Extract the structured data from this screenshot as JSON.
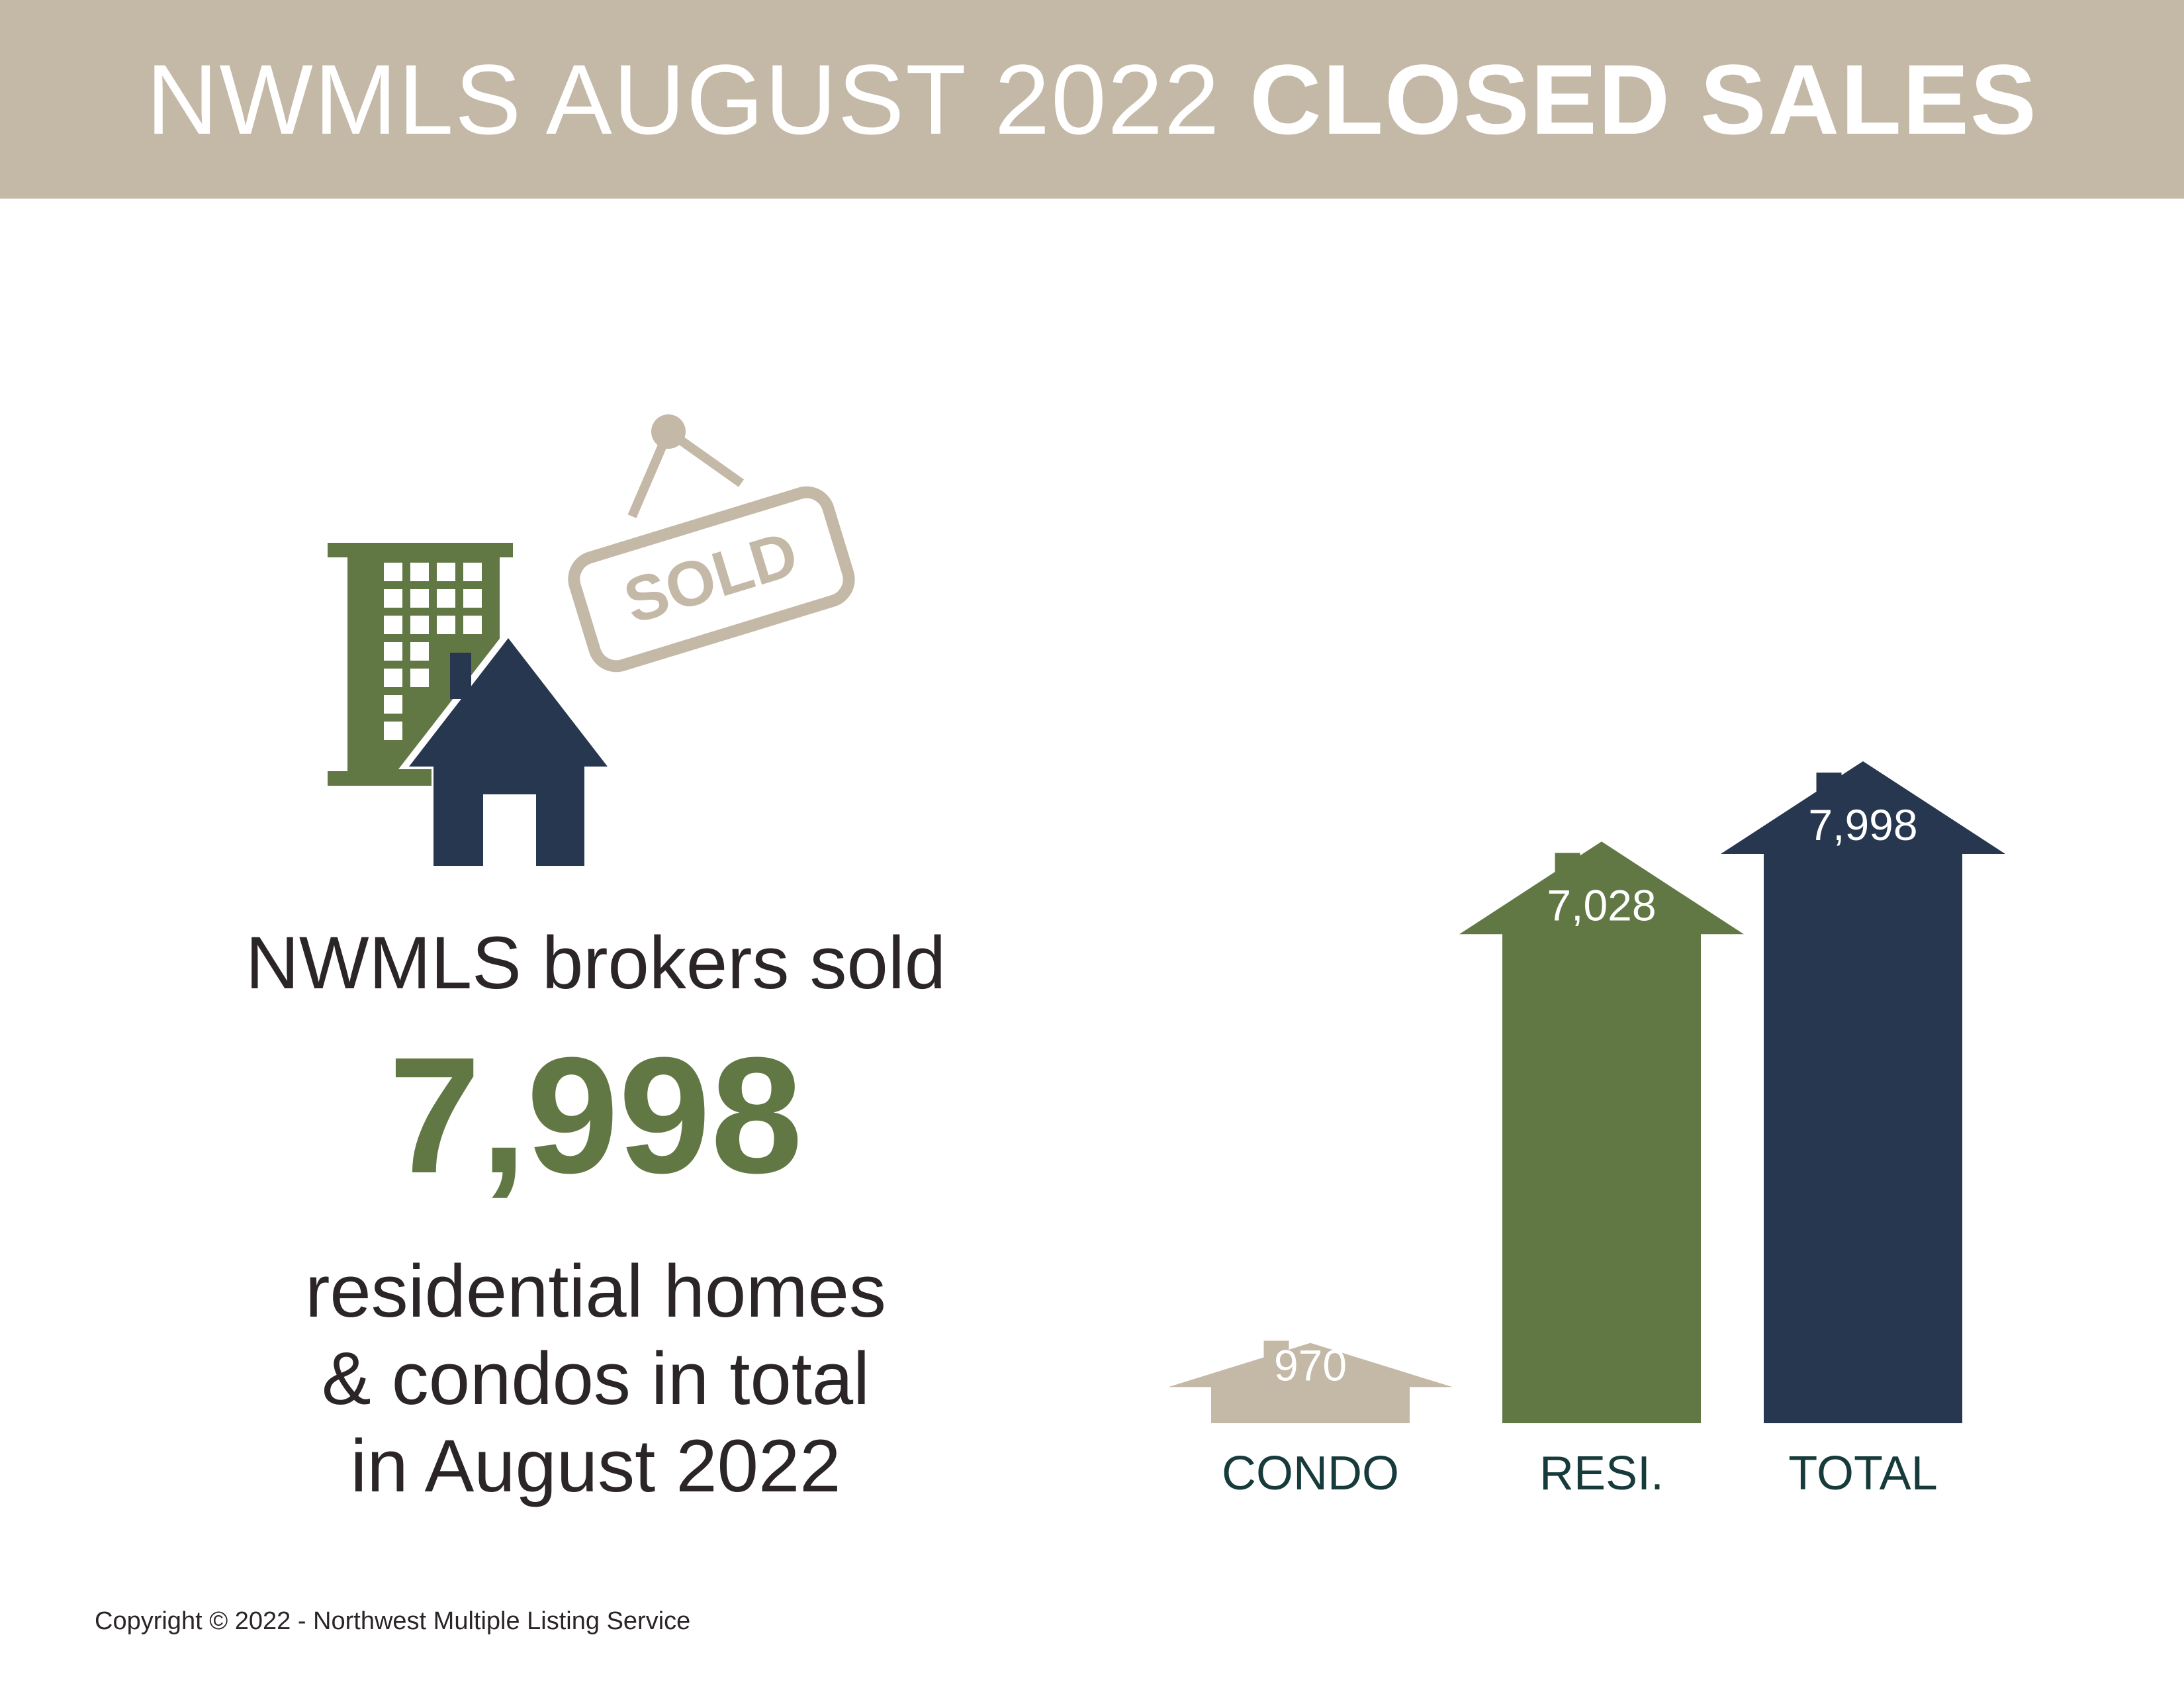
{
  "header": {
    "title_light": "NWMLS AUGUST 2022",
    "title_bold": "CLOSED SALES"
  },
  "illustration": {
    "sign_text": "SOLD",
    "icons": [
      "building-icon",
      "house-icon",
      "sold-sign-icon"
    ]
  },
  "summary": {
    "headline": "NWMLS brokers sold",
    "big_number": "7,998",
    "line1": "residential homes",
    "line2": "& condos in total",
    "line3": "in August 2022"
  },
  "footer": {
    "copyright": "Copyright © 2022 - Northwest Multiple Listing Service"
  },
  "colors": {
    "band": "#c4b8a7",
    "green": "#627844",
    "navy": "#273750",
    "text": "#2b2527",
    "label": "#173a3b"
  },
  "chart_data": {
    "type": "bar",
    "categories": [
      "CONDO",
      "RESI.",
      "TOTAL"
    ],
    "values": [
      970,
      7028,
      7998
    ],
    "value_labels": [
      "970",
      "7,028",
      "7,998"
    ],
    "colors": [
      "#c4b8a7",
      "#627844",
      "#273750"
    ],
    "mark_shape": "house"
  }
}
